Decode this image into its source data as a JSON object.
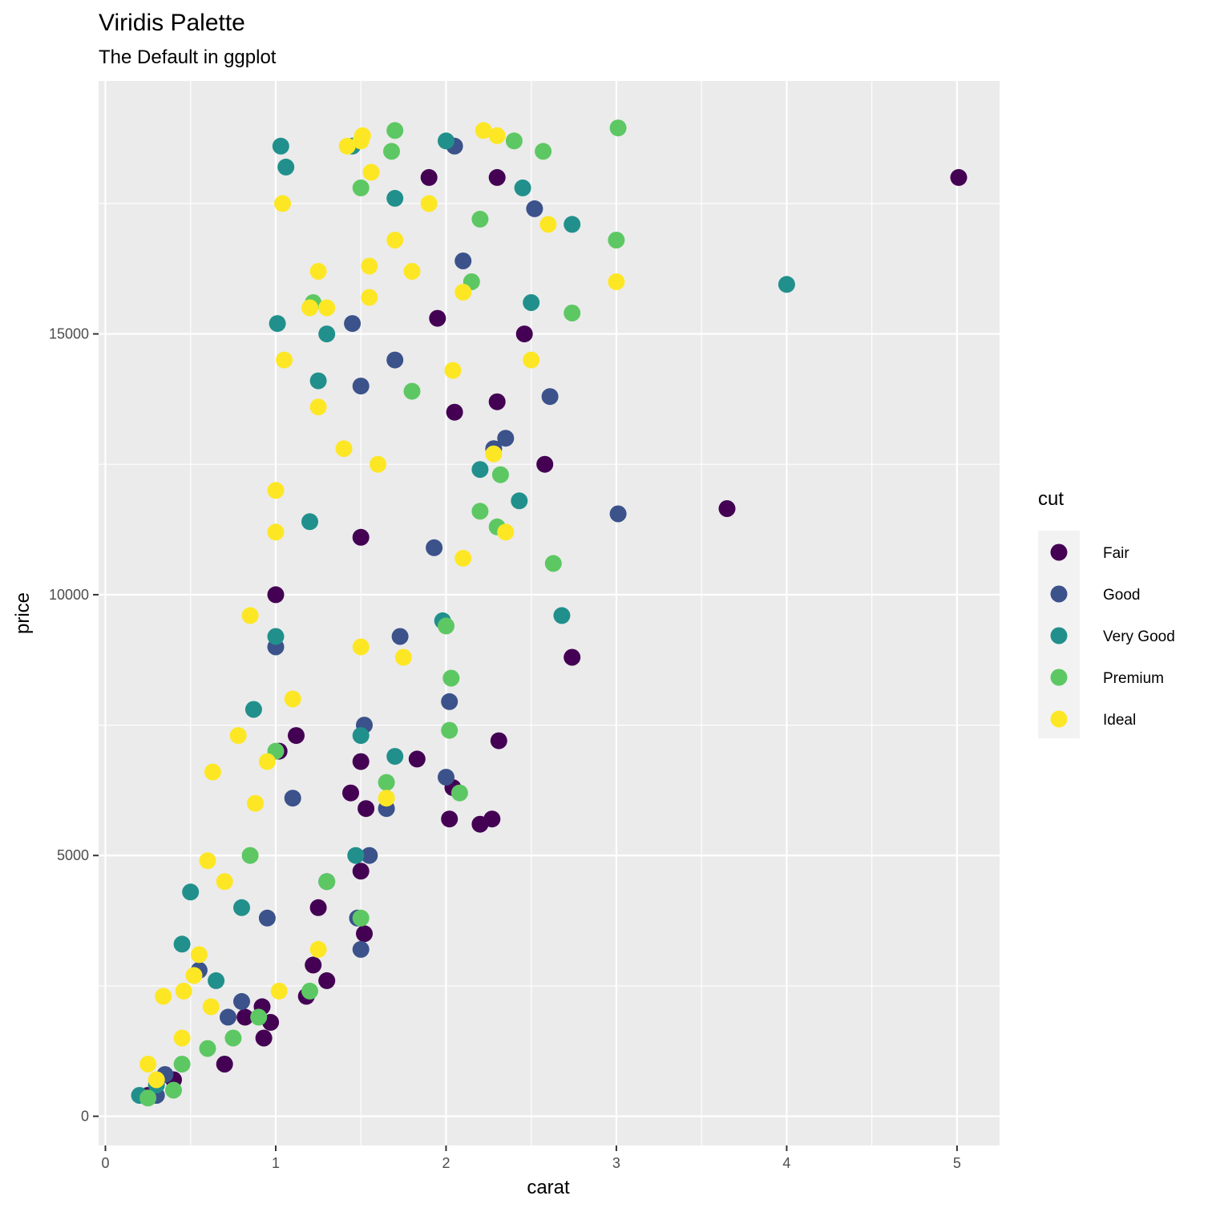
{
  "chart_data": {
    "type": "scatter",
    "title": "Viridis Palette",
    "subtitle": "The Default in ggplot",
    "xlabel": "carat",
    "ylabel": "price",
    "xlim": [
      -0.04,
      5.25
    ],
    "ylim": [
      -560,
      19850
    ],
    "x_ticks": [
      0,
      1,
      2,
      3,
      4,
      5
    ],
    "x_tick_labels": [
      "0",
      "1",
      "2",
      "3",
      "4",
      "5"
    ],
    "y_ticks": [
      0,
      5000,
      10000,
      15000
    ],
    "y_tick_labels": [
      "0",
      "5000",
      "10000",
      "15000"
    ],
    "grid": true,
    "legend": {
      "title": "cut",
      "position": "right",
      "entries": [
        {
          "name": "Fair",
          "color": "#440154"
        },
        {
          "name": "Good",
          "color": "#3B528B"
        },
        {
          "name": "Very Good",
          "color": "#21908C"
        },
        {
          "name": "Premium",
          "color": "#5DC863"
        },
        {
          "name": "Ideal",
          "color": "#FDE725"
        }
      ]
    },
    "series": [
      {
        "name": "Fair",
        "color": "#440154",
        "points": [
          [
            5.01,
            18000
          ],
          [
            3.65,
            11650
          ],
          [
            2.74,
            8800
          ],
          [
            2.31,
            7200
          ],
          [
            2.58,
            12500
          ],
          [
            2.46,
            15000
          ],
          [
            2.3,
            18000
          ],
          [
            1.9,
            18000
          ],
          [
            2.2,
            5600
          ],
          [
            2.27,
            5700
          ],
          [
            2.02,
            5700
          ],
          [
            2.04,
            6300
          ],
          [
            1.83,
            6850
          ],
          [
            1.5,
            4700
          ],
          [
            1.52,
            3500
          ],
          [
            1.3,
            2600
          ],
          [
            1.22,
            2900
          ],
          [
            1.18,
            2300
          ],
          [
            1.0,
            10000
          ],
          [
            1.12,
            7300
          ],
          [
            0.92,
            2100
          ],
          [
            0.97,
            1800
          ],
          [
            0.93,
            1500
          ],
          [
            0.7,
            1000
          ],
          [
            0.4,
            700
          ],
          [
            0.25,
            400
          ],
          [
            1.5,
            6800
          ],
          [
            1.53,
            5900
          ],
          [
            2.05,
            13500
          ],
          [
            2.3,
            13700
          ],
          [
            1.5,
            11100
          ],
          [
            1.95,
            15300
          ],
          [
            1.02,
            7000
          ],
          [
            1.25,
            4000
          ],
          [
            1.44,
            6200
          ],
          [
            0.82,
            1900
          ]
        ]
      },
      {
        "name": "Good",
        "color": "#3B528B",
        "points": [
          [
            2.61,
            13800
          ],
          [
            2.35,
            13000
          ],
          [
            3.01,
            11550
          ],
          [
            2.0,
            6500
          ],
          [
            2.02,
            7950
          ],
          [
            1.55,
            5000
          ],
          [
            1.5,
            3200
          ],
          [
            1.48,
            3800
          ],
          [
            1.65,
            5900
          ],
          [
            1.73,
            9200
          ],
          [
            1.0,
            9000
          ],
          [
            0.95,
            3800
          ],
          [
            0.55,
            2800
          ],
          [
            0.35,
            800
          ],
          [
            0.3,
            400
          ],
          [
            1.5,
            14000
          ],
          [
            2.28,
            12800
          ],
          [
            2.05,
            18600
          ],
          [
            1.93,
            10900
          ],
          [
            1.52,
            7500
          ],
          [
            1.3,
            4500
          ],
          [
            1.1,
            6100
          ],
          [
            0.72,
            1900
          ],
          [
            1.45,
            15200
          ],
          [
            1.7,
            14500
          ],
          [
            2.1,
            16400
          ],
          [
            2.52,
            17400
          ],
          [
            0.8,
            2200
          ]
        ]
      },
      {
        "name": "Very Good",
        "color": "#21908C",
        "points": [
          [
            4.0,
            15950
          ],
          [
            2.74,
            17100
          ],
          [
            2.68,
            9600
          ],
          [
            2.43,
            11800
          ],
          [
            1.03,
            18600
          ],
          [
            1.06,
            18200
          ],
          [
            1.01,
            15200
          ],
          [
            0.87,
            7800
          ],
          [
            0.5,
            4300
          ],
          [
            0.45,
            3300
          ],
          [
            0.3,
            600
          ],
          [
            0.2,
            400
          ],
          [
            1.45,
            18600
          ],
          [
            1.7,
            17600
          ],
          [
            2.0,
            18700
          ],
          [
            2.45,
            17800
          ],
          [
            2.5,
            15600
          ],
          [
            1.3,
            15000
          ],
          [
            1.25,
            14100
          ],
          [
            1.0,
            9200
          ],
          [
            0.8,
            4000
          ],
          [
            1.7,
            6900
          ],
          [
            1.5,
            7300
          ],
          [
            2.2,
            12400
          ],
          [
            1.98,
            9500
          ],
          [
            1.47,
            5000
          ],
          [
            1.2,
            11400
          ],
          [
            0.65,
            2600
          ]
        ]
      },
      {
        "name": "Premium",
        "color": "#5DC863",
        "points": [
          [
            3.01,
            18950
          ],
          [
            3.0,
            16800
          ],
          [
            2.74,
            15400
          ],
          [
            2.63,
            10600
          ],
          [
            2.57,
            18500
          ],
          [
            2.4,
            18700
          ],
          [
            2.03,
            8400
          ],
          [
            2.02,
            7400
          ],
          [
            2.08,
            6200
          ],
          [
            2.2,
            11600
          ],
          [
            1.7,
            18900
          ],
          [
            1.68,
            18500
          ],
          [
            1.5,
            17800
          ],
          [
            1.22,
            15600
          ],
          [
            1.5,
            3800
          ],
          [
            1.2,
            2400
          ],
          [
            0.9,
            1900
          ],
          [
            0.75,
            1500
          ],
          [
            0.6,
            1300
          ],
          [
            0.4,
            500
          ],
          [
            0.25,
            350
          ],
          [
            2.0,
            9400
          ],
          [
            2.3,
            11300
          ],
          [
            2.32,
            12300
          ],
          [
            1.8,
            13900
          ],
          [
            1.65,
            6400
          ],
          [
            1.3,
            4500
          ],
          [
            1.0,
            7000
          ],
          [
            0.85,
            5000
          ],
          [
            2.2,
            17200
          ],
          [
            2.15,
            16000
          ],
          [
            0.45,
            1000
          ]
        ]
      },
      {
        "name": "Ideal",
        "color": "#FDE725",
        "points": [
          [
            1.51,
            18800
          ],
          [
            1.5,
            18700
          ],
          [
            1.42,
            18600
          ],
          [
            1.04,
            17500
          ],
          [
            1.56,
            18100
          ],
          [
            3.0,
            16000
          ],
          [
            2.5,
            14500
          ],
          [
            2.22,
            18900
          ],
          [
            2.3,
            18800
          ],
          [
            2.6,
            17100
          ],
          [
            1.05,
            14500
          ],
          [
            1.0,
            12000
          ],
          [
            0.63,
            6600
          ],
          [
            0.78,
            7300
          ],
          [
            0.88,
            6000
          ],
          [
            0.6,
            4900
          ],
          [
            0.34,
            2300
          ],
          [
            0.46,
            2400
          ],
          [
            0.52,
            2700
          ],
          [
            0.3,
            700
          ],
          [
            0.25,
            1000
          ],
          [
            1.25,
            16200
          ],
          [
            1.2,
            15500
          ],
          [
            1.3,
            15500
          ],
          [
            1.25,
            13600
          ],
          [
            1.55,
            15700
          ],
          [
            1.55,
            16300
          ],
          [
            1.7,
            16800
          ],
          [
            1.8,
            16200
          ],
          [
            1.6,
            12500
          ],
          [
            2.1,
            10700
          ],
          [
            2.04,
            14300
          ],
          [
            2.1,
            15800
          ],
          [
            1.0,
            11200
          ],
          [
            0.85,
            9600
          ],
          [
            1.9,
            17500
          ],
          [
            2.35,
            11200
          ],
          [
            2.28,
            12700
          ],
          [
            1.75,
            8800
          ],
          [
            1.1,
            8000
          ],
          [
            0.95,
            6800
          ],
          [
            0.7,
            4500
          ],
          [
            0.55,
            3100
          ],
          [
            0.45,
            1500
          ],
          [
            0.62,
            2100
          ],
          [
            1.4,
            12800
          ],
          [
            1.5,
            9000
          ],
          [
            1.02,
            2400
          ],
          [
            1.25,
            3200
          ],
          [
            1.65,
            6100
          ]
        ]
      }
    ]
  }
}
